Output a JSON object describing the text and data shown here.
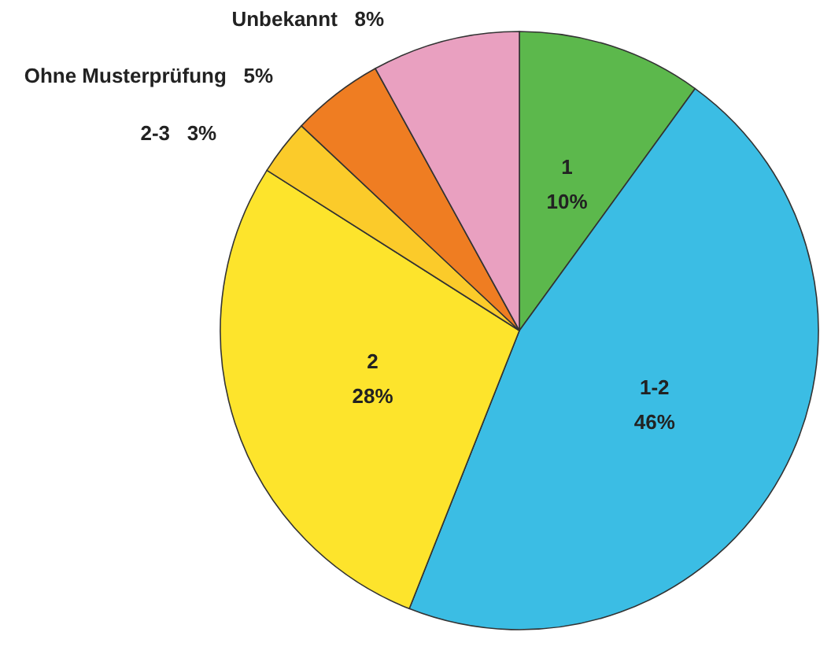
{
  "chart_data": {
    "type": "pie",
    "categories": [
      "1",
      "1-2",
      "2",
      "2-3",
      "Ohne Musterprüfung",
      "Unbekannt"
    ],
    "values": [
      10,
      46,
      28,
      3,
      5,
      8
    ],
    "value_labels": [
      "10%",
      "46%",
      "28%",
      "3%",
      "5%",
      "8%"
    ],
    "colors": [
      "#5cb84c",
      "#3bbde4",
      "#fde42c",
      "#fbcb2a",
      "#ef7d22",
      "#e9a0c0"
    ]
  }
}
